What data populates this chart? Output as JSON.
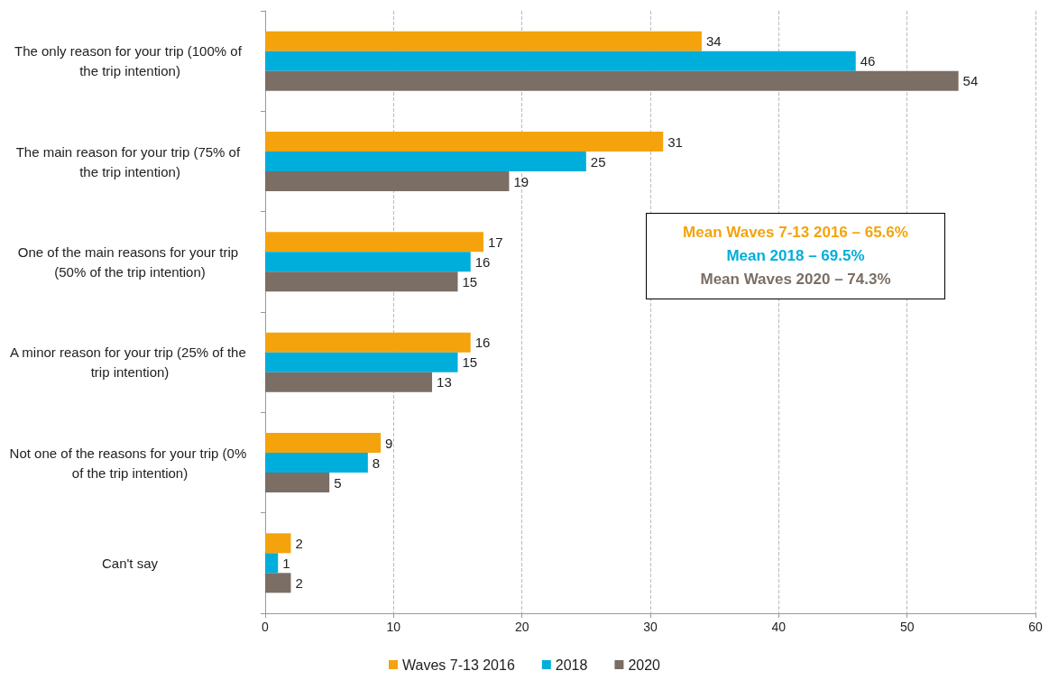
{
  "chart_data": {
    "type": "bar",
    "orientation": "horizontal",
    "categories": [
      "The only reason for your trip (100% of the trip intention)",
      "The main reason for your trip (75% of the trip intention)",
      "One of the main reasons for your trip (50% of the trip intention)",
      "A minor reason for your trip (25% of the trip intention)",
      "Not one of the reasons for your trip (0% of the trip intention)",
      "Can't say"
    ],
    "series": [
      {
        "name": "Waves 7-13 2016",
        "color": "#f4a30c",
        "values": [
          34,
          31,
          17,
          16,
          9,
          2
        ]
      },
      {
        "name": "2018",
        "color": "#00aedb",
        "values": [
          46,
          25,
          16,
          15,
          8,
          1
        ]
      },
      {
        "name": "2020",
        "color": "#7a6e65",
        "values": [
          54,
          19,
          15,
          13,
          5,
          2
        ]
      }
    ],
    "xlim": [
      0,
      60
    ],
    "xticks": [
      0,
      10,
      20,
      30,
      40,
      50,
      60
    ],
    "grid": "x",
    "legend": "bottom",
    "data_labels": true,
    "annotations": [
      "Mean Waves 7-13 2016 – 65.6%",
      "Mean 2018 – 69.5%",
      "Mean Waves 2020 – 74.3%"
    ]
  }
}
